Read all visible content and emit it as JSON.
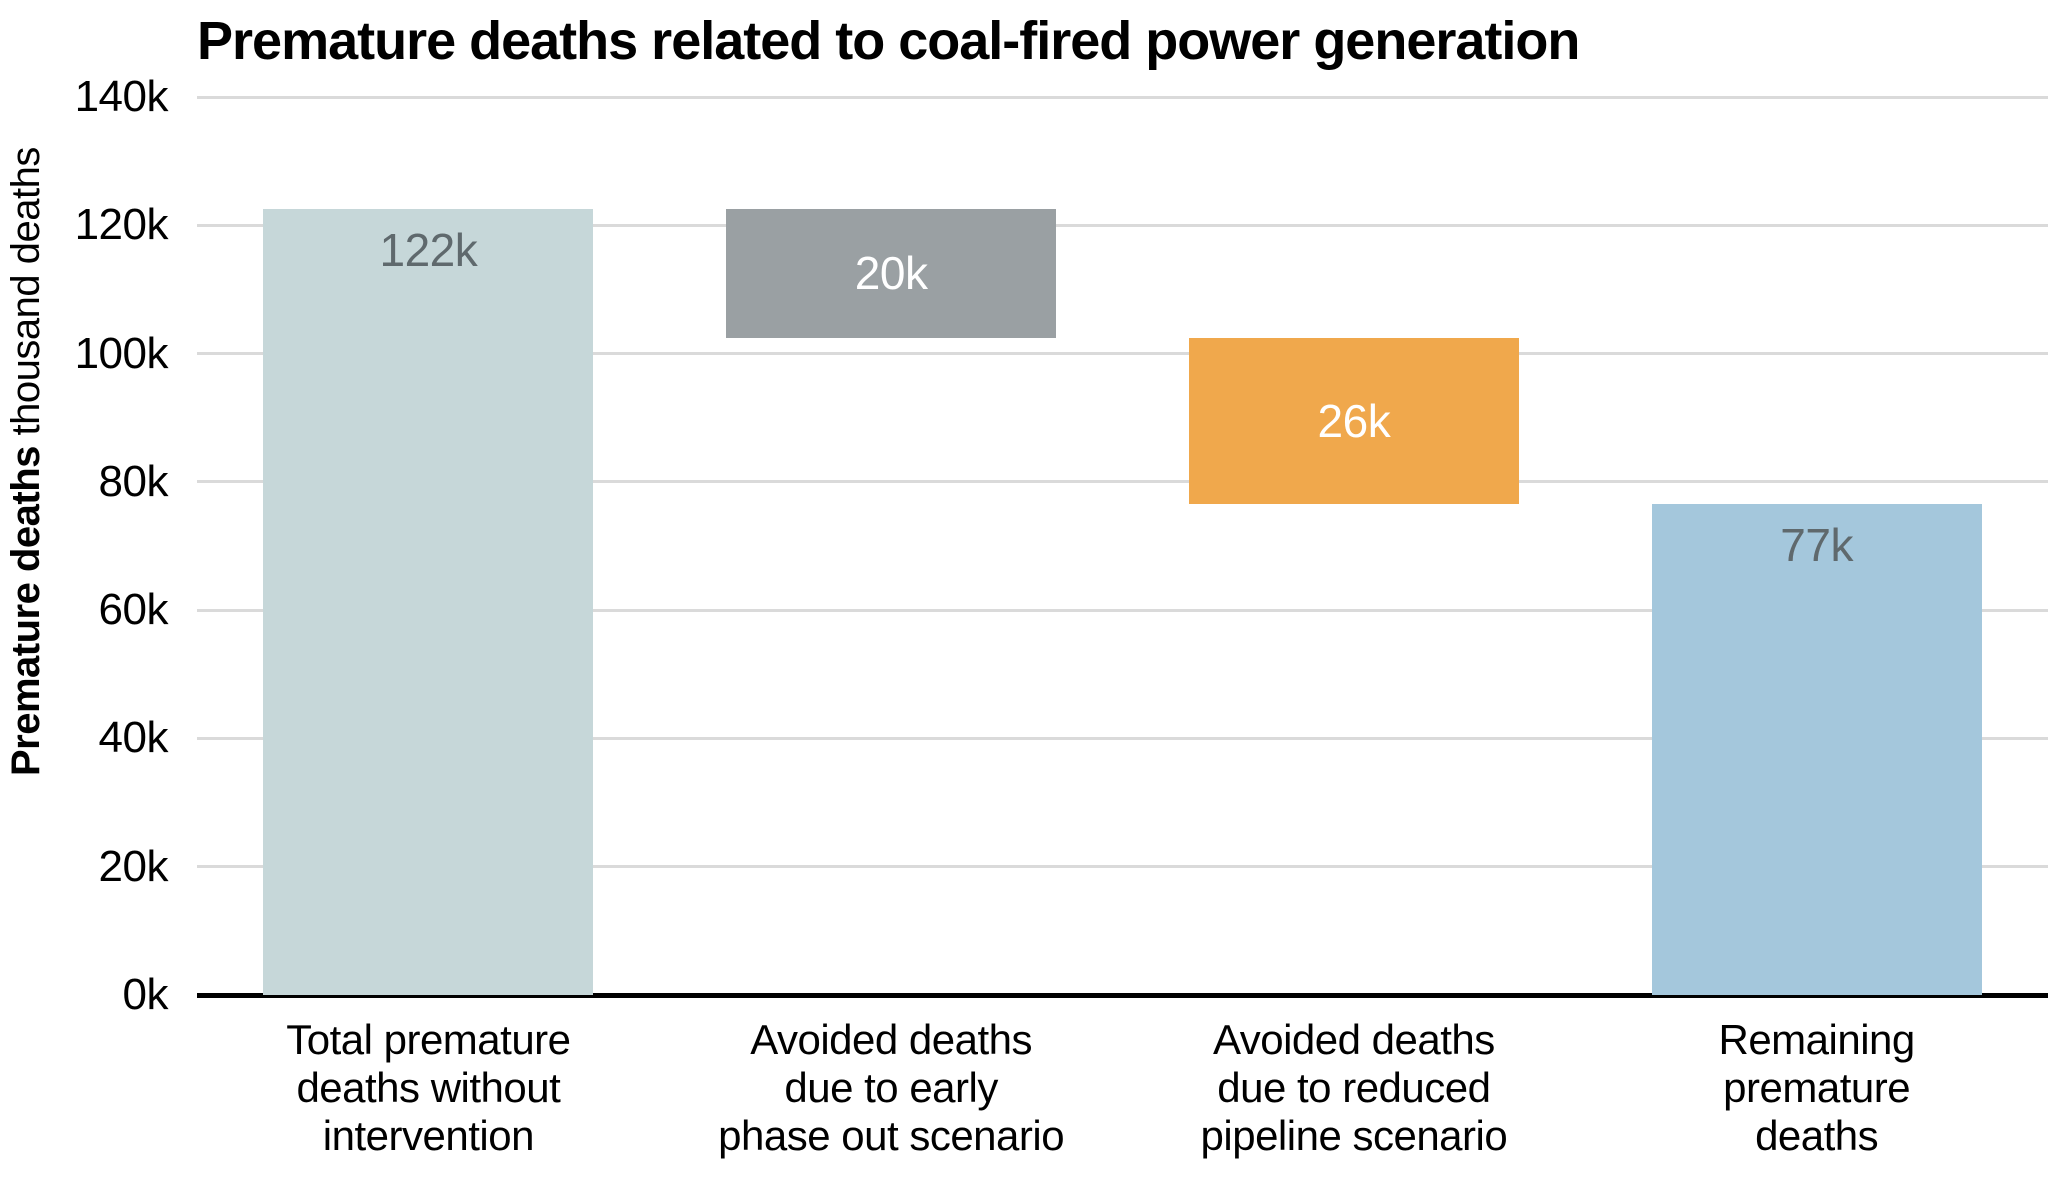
{
  "chart_data": {
    "type": "bar",
    "subtype": "waterfall",
    "title": "Premature deaths related to coal-fired power generation",
    "ylabel": {
      "bold": "Premature deaths",
      "regular": "thousand deaths"
    },
    "yticks": [
      "0k",
      "20k",
      "40k",
      "60k",
      "80k",
      "100k",
      "120k",
      "140k"
    ],
    "ytick_step": 20,
    "ylim": [
      0,
      140
    ],
    "grid": true,
    "legend": false,
    "categories": [
      "Total premature deaths without intervention",
      "Avoided deaths due to early phase out scenario",
      "Avoided deaths due to reduced pipeline scenario",
      "Remaining premature deaths"
    ],
    "bars": [
      {
        "name": "total-premature-deaths-without-intervention",
        "label_lines": [
          "Total premature",
          "deaths without",
          "intervention"
        ],
        "value": 122,
        "value_display": "122k",
        "start": 0,
        "end": 122.5,
        "color": "#c6d7d9",
        "value_color": "#5f696d",
        "value_position": "top"
      },
      {
        "name": "avoided-deaths-early-phase-out",
        "label_lines": [
          "Avoided deaths",
          "due to early",
          "phase out scenario"
        ],
        "value": 20,
        "value_display": "20k",
        "start": 102.5,
        "end": 122.5,
        "color": "#9aa0a3",
        "value_color": "#ffffff",
        "value_position": "center"
      },
      {
        "name": "avoided-deaths-reduced-pipeline",
        "label_lines": [
          "Avoided deaths",
          "due to reduced",
          "pipeline scenario"
        ],
        "value": 26,
        "value_display": "26k",
        "start": 76.5,
        "end": 102.5,
        "color": "#f0a84c",
        "value_color": "#ffffff",
        "value_position": "center"
      },
      {
        "name": "remaining-premature-deaths",
        "label_lines": [
          "Remaining",
          "premature",
          "deaths"
        ],
        "value": 77,
        "value_display": "77k",
        "start": 0,
        "end": 76.5,
        "color": "#a4c7dc",
        "value_color": "#5f696d",
        "value_position": "top"
      }
    ],
    "colors": {
      "gridline": "#dadada",
      "axis_line": "#000000",
      "text": "#000000"
    }
  }
}
